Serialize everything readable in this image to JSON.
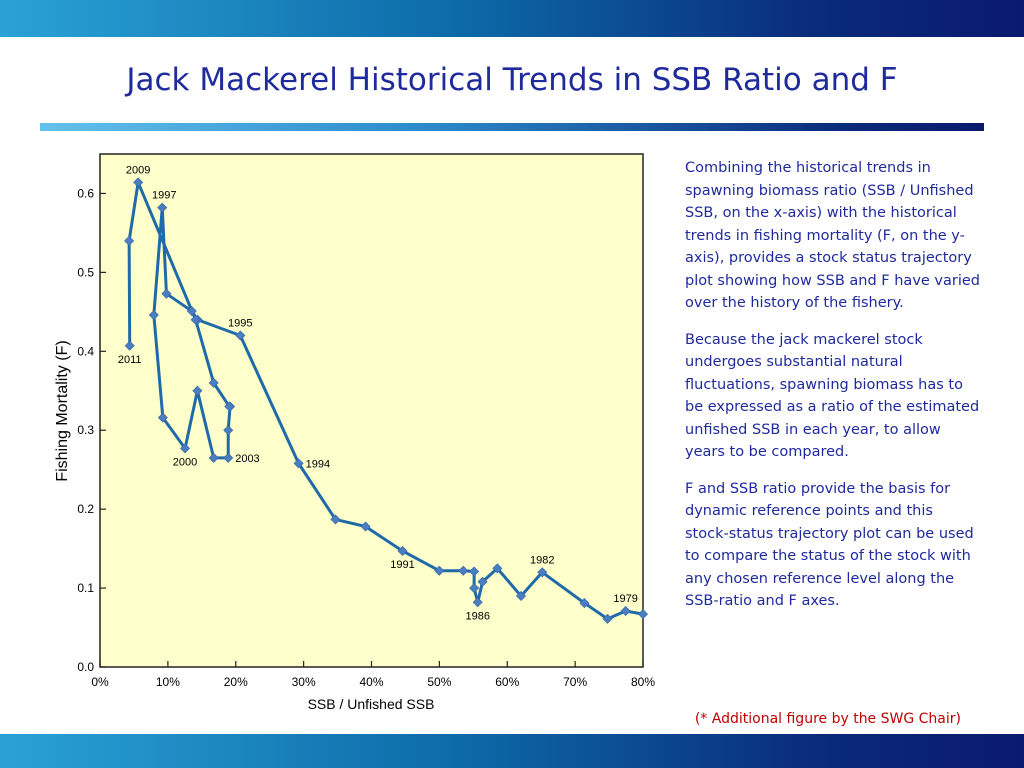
{
  "slide": {
    "title": "Jack Mackerel Historical Trends in SSB Ratio and F",
    "paragraphs": [
      "Combining the historical trends in spawning biomass ratio (SSB / Unfished SSB, on the x-axis) with the historical trends in fishing mortality (F, on the y-axis), provides a stock status trajectory plot  showing how SSB and F have varied over the history of the fishery.",
      "Because the jack mackerel stock undergoes substantial natural fluctuations, spawning biomass has to be expressed as a ratio of the estimated unfished SSB in each year, to allow years to be compared.",
      "F and SSB ratio provide the basis for dynamic reference points and this stock-status trajectory plot can be used to compare the status of the stock with any chosen reference level along the SSB-ratio and F axes."
    ],
    "footnote": "(* Additional figure by the SWG Chair)"
  },
  "chart_data": {
    "type": "line",
    "xlabel": "SSB / Unfished SSB",
    "ylabel": "Fishing Mortality (F)",
    "xlim": [
      0,
      0.8
    ],
    "ylim": [
      0,
      0.65
    ],
    "xticks": [
      0,
      0.1,
      0.2,
      0.3,
      0.4,
      0.5,
      0.6,
      0.7,
      0.8
    ],
    "xtick_labels": [
      "0%",
      "10%",
      "20%",
      "30%",
      "40%",
      "50%",
      "60%",
      "70%",
      "80%"
    ],
    "yticks": [
      0,
      0.1,
      0.2,
      0.3,
      0.4,
      0.5,
      0.6
    ],
    "ytick_labels": [
      "0.0",
      "0.1",
      "0.2",
      "0.3",
      "0.4",
      "0.5",
      "0.6"
    ],
    "plot_background": "#ffffcc",
    "series_color": "#1f6aa8",
    "marker_color": "#4a7ec0",
    "points": [
      [
        0.8,
        0.067
      ],
      [
        0.7744,
        0.071
      ],
      [
        0.7477,
        0.061
      ],
      [
        0.7137,
        0.081
      ],
      [
        0.6516,
        0.12
      ],
      [
        0.6203,
        0.09
      ],
      [
        0.5854,
        0.125
      ],
      [
        0.5636,
        0.108
      ],
      [
        0.5565,
        0.082
      ],
      [
        0.5512,
        0.1
      ],
      [
        0.5512,
        0.121
      ],
      [
        0.5352,
        0.122
      ],
      [
        0.4998,
        0.122
      ],
      [
        0.4457,
        0.147
      ],
      [
        0.3912,
        0.178
      ],
      [
        0.3469,
        0.187
      ],
      [
        0.2926,
        0.258
      ],
      [
        0.2067,
        0.42
      ],
      [
        0.1438,
        0.44
      ],
      [
        0.1352,
        0.451
      ],
      [
        0.0979,
        0.473
      ],
      [
        0.0917,
        0.582
      ],
      [
        0.0793,
        0.446
      ],
      [
        0.0926,
        0.316
      ],
      [
        0.1253,
        0.277
      ],
      [
        0.1435,
        0.35
      ],
      [
        0.1675,
        0.265
      ],
      [
        0.1889,
        0.265
      ],
      [
        0.1889,
        0.3
      ],
      [
        0.1916,
        0.33
      ],
      [
        0.1906,
        0.33
      ],
      [
        0.1675,
        0.36
      ],
      [
        0.1409,
        0.44
      ],
      [
        0.0562,
        0.614
      ],
      [
        0.0429,
        0.54
      ],
      [
        0.0438,
        0.407
      ]
    ],
    "annotations": [
      {
        "label": "2009",
        "x": 0.0562,
        "y": 0.614,
        "anchor": "above"
      },
      {
        "label": "1997",
        "x": 0.0917,
        "y": 0.582,
        "anchor": "above-right"
      },
      {
        "label": "1995",
        "x": 0.2067,
        "y": 0.42,
        "anchor": "above"
      },
      {
        "label": "2011",
        "x": 0.0438,
        "y": 0.407,
        "anchor": "below"
      },
      {
        "label": "2000",
        "x": 0.1253,
        "y": 0.277,
        "anchor": "below"
      },
      {
        "label": "2003",
        "x": 0.1889,
        "y": 0.265,
        "anchor": "right"
      },
      {
        "label": "1994",
        "x": 0.2926,
        "y": 0.258,
        "anchor": "right"
      },
      {
        "label": "1991",
        "x": 0.4457,
        "y": 0.147,
        "anchor": "below"
      },
      {
        "label": "1986",
        "x": 0.5565,
        "y": 0.082,
        "anchor": "below"
      },
      {
        "label": "1982",
        "x": 0.6516,
        "y": 0.12,
        "anchor": "above"
      },
      {
        "label": "1979",
        "x": 0.7744,
        "y": 0.071,
        "anchor": "above"
      }
    ]
  }
}
